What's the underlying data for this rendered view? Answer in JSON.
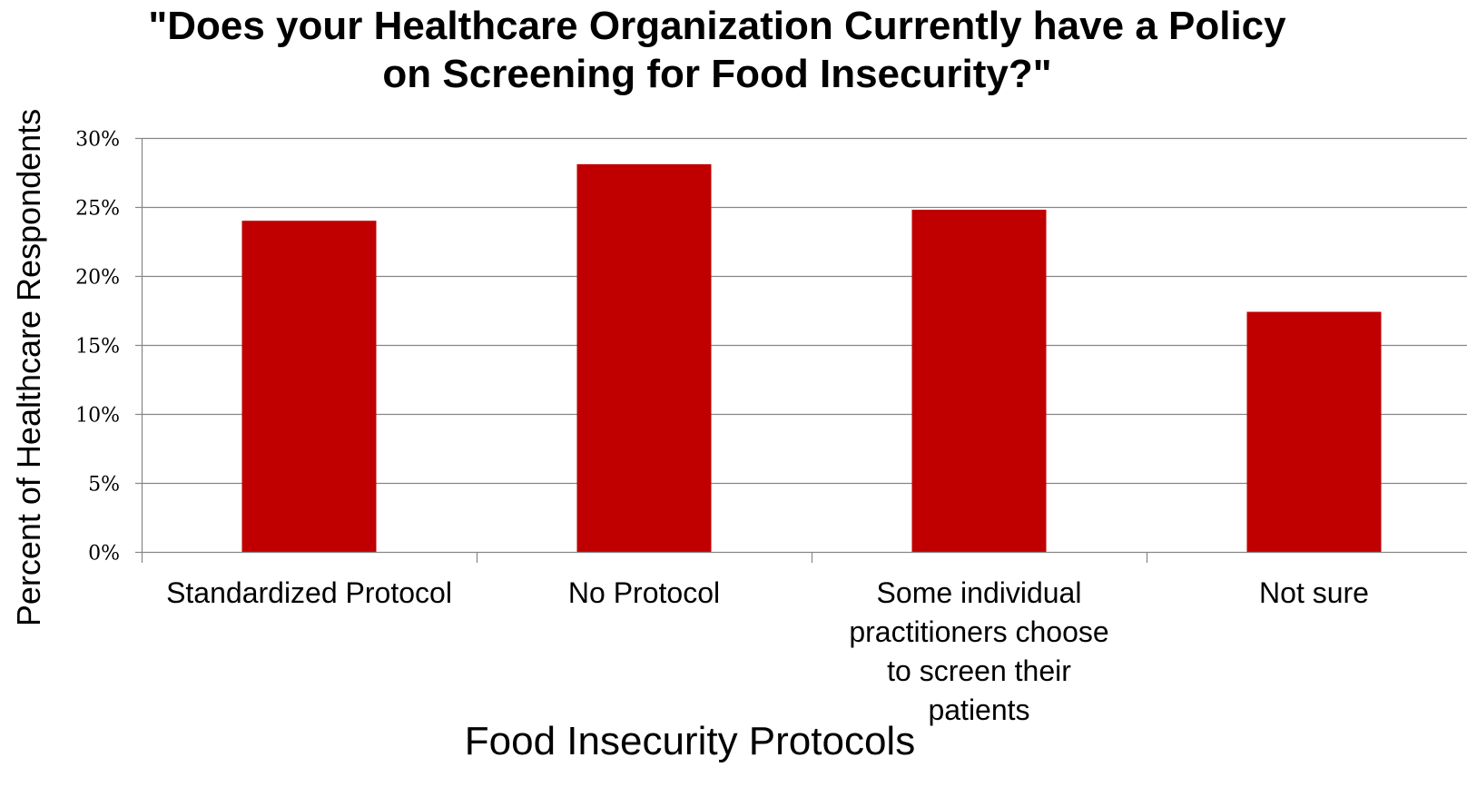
{
  "chart_data": {
    "type": "bar",
    "title": "\"Does your Healthcare Organization Currently have a Policy on Screening for Food Insecurity?\"",
    "xlabel": "Food Insecurity Protocols",
    "ylabel": "Percent of Healthcare Respondents",
    "categories": [
      "Standardized Protocol",
      "No Protocol",
      "Some individual practitioners choose to screen their patients",
      "Not sure"
    ],
    "category_lines": [
      [
        "Standardized Protocol"
      ],
      [
        "No Protocol"
      ],
      [
        "Some individual",
        "practitioners choose",
        "to screen their",
        "patients"
      ],
      [
        "Not sure"
      ]
    ],
    "values": [
      24.0,
      28.1,
      24.8,
      17.4
    ],
    "ylim": [
      0,
      30
    ],
    "yticks": [
      0,
      5,
      10,
      15,
      20,
      25,
      30
    ],
    "ytick_labels": [
      "0%",
      "5%",
      "10%",
      "15%",
      "20%",
      "25%",
      "30%"
    ],
    "grid": true,
    "legend": "none",
    "bar_color": "#c00000",
    "gridline_color": "#868686"
  }
}
